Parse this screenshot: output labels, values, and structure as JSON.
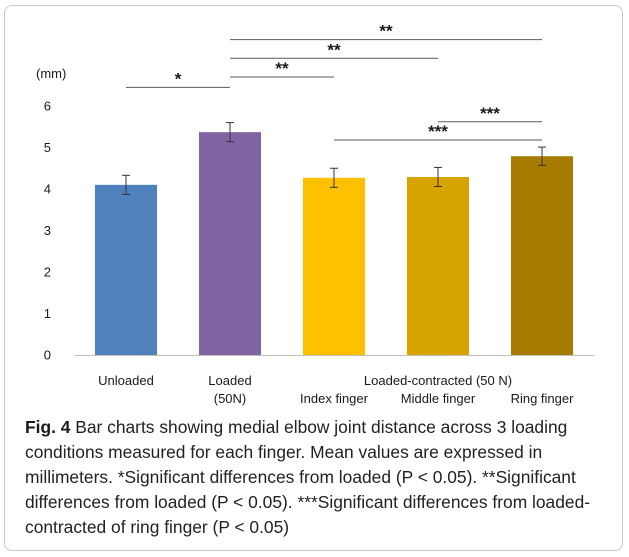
{
  "chart_data": {
    "type": "bar",
    "ylabel": "(mm)",
    "ylim": [
      0,
      6
    ],
    "yticks": [
      0,
      1,
      2,
      3,
      4,
      5,
      6
    ],
    "grid": false,
    "categories": [
      {
        "label": "Unloaded",
        "sublabel": "",
        "value": 4.1,
        "error": 0.23,
        "color": "#4f81bd"
      },
      {
        "label": "Loaded",
        "sublabel": "(50N)",
        "value": 5.37,
        "error": 0.23,
        "color": "#8064a2"
      },
      {
        "label": "Index finger",
        "sublabel": "",
        "value": 4.27,
        "error": 0.23,
        "color": "#ffc000"
      },
      {
        "label": "Middle finger",
        "sublabel": "",
        "value": 4.29,
        "error": 0.23,
        "color": "#d6a300"
      },
      {
        "label": "Ring finger",
        "sublabel": "",
        "value": 4.79,
        "error": 0.22,
        "color": "#a67c00"
      }
    ],
    "group_label": "Loaded-contracted (50 N)",
    "group_members": [
      2,
      3,
      4
    ],
    "significance": [
      {
        "from": 0,
        "to": 1,
        "label": "*",
        "level": 6.45
      },
      {
        "from": 1,
        "to": 2,
        "label": "**",
        "level": 6.7
      },
      {
        "from": 1,
        "to": 3,
        "label": "**",
        "level": 7.15
      },
      {
        "from": 1,
        "to": 4,
        "label": "**",
        "level": 7.6
      },
      {
        "from": 3,
        "to": 4,
        "label": "***",
        "level": 5.62
      },
      {
        "from": 2,
        "to": 4,
        "label": "***",
        "level": 5.18
      }
    ]
  },
  "caption": {
    "label": "Fig. 4",
    "text": " Bar charts showing medial elbow joint distance across 3 loading conditions measured for each finger. Mean values are expressed in millimeters. *Significant differences from loaded (P < 0.05). **Significant differences from loaded (P < 0.05). ***Significant differences from loaded-contracted of ring finger (P < 0.05)"
  }
}
